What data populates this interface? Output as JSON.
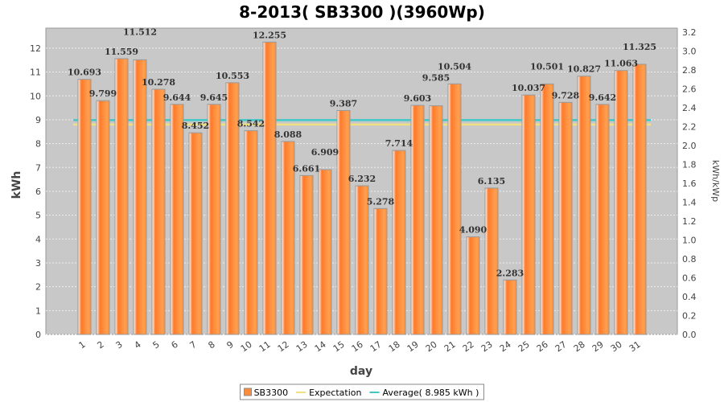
{
  "chart_data": {
    "type": "bar",
    "title": "8-2013( SB3300 )(3960Wp)",
    "xlabel": "day",
    "ylabel": "kWh",
    "ylabel_right": "kWh/kWp",
    "ylim": [
      0,
      12.84
    ],
    "ylim_right": [
      0,
      3.242
    ],
    "yticks": [
      0,
      1,
      2,
      3,
      4,
      5,
      6,
      7,
      8,
      9,
      10,
      11,
      12
    ],
    "yticks_right": [
      "0.0",
      "0.2",
      "0.4",
      "0.6",
      "0.8",
      "1.0",
      "1.2",
      "1.4",
      "1.6",
      "1.8",
      "2.0",
      "2.2",
      "2.4",
      "2.6",
      "2.8",
      "3.0",
      "3.2"
    ],
    "categories": [
      "1",
      "2",
      "3",
      "4",
      "5",
      "6",
      "7",
      "8",
      "9",
      "10",
      "11",
      "12",
      "13",
      "14",
      "15",
      "16",
      "17",
      "18",
      "19",
      "20",
      "21",
      "22",
      "23",
      "24",
      "25",
      "26",
      "27",
      "28",
      "29",
      "30",
      "31"
    ],
    "series": [
      {
        "name": "SB3300",
        "color": "#ff8c3a",
        "values": [
          10.693,
          9.799,
          11.559,
          11.512,
          10.278,
          9.644,
          8.452,
          9.645,
          10.553,
          8.542,
          12.255,
          8.088,
          6.661,
          6.909,
          9.387,
          6.232,
          5.278,
          7.714,
          9.603,
          9.585,
          10.504,
          4.09,
          6.135,
          2.283,
          10.037,
          10.501,
          9.728,
          10.827,
          9.642,
          11.063,
          11.325
        ],
        "labels": [
          "10.693",
          "9.799",
          "11.559",
          "11.512",
          "10.278",
          "9.644",
          "8.452",
          "9.645",
          "10.553",
          "8.542",
          "12.255",
          "8.088",
          "6.661",
          "6.909",
          "9.387",
          "6.232",
          "5.278",
          "7.714",
          "9.603",
          "9.585",
          "10.504",
          "4.090",
          "6.135",
          "2.283",
          "10.037",
          "10.501",
          "9.728",
          "10.827",
          "9.642",
          "11.063",
          "11.325"
        ]
      }
    ],
    "lines": [
      {
        "name": "Expectation",
        "value": 8.8,
        "color": "#f0e080"
      },
      {
        "name": "Average( 8.985 kWh )",
        "value": 8.985,
        "color": "#40c8c8"
      }
    ],
    "grid": true,
    "legend": "bottom"
  }
}
